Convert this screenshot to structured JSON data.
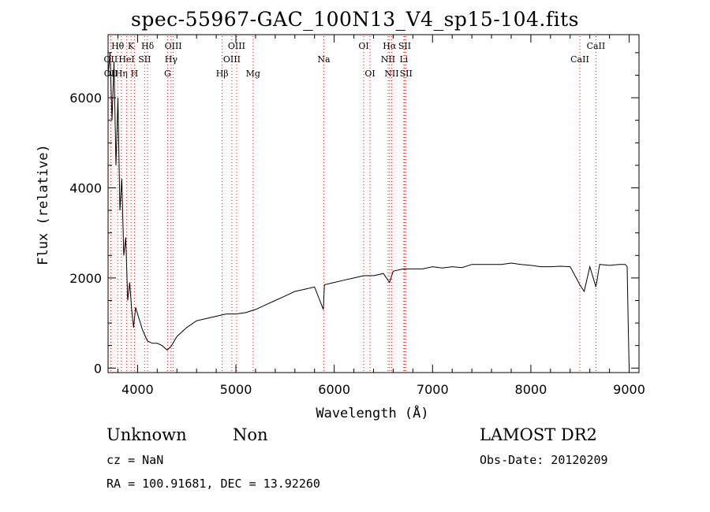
{
  "chart_data": {
    "type": "line",
    "title": "spec-55967-GAC_100N13_V4_sp15-104.fits",
    "xlabel": "Wavelength (Å)",
    "ylabel": "Flux (relative)",
    "xlim": [
      3700,
      9100
    ],
    "ylim": [
      -100,
      7400
    ],
    "x_ticks": [
      4000,
      5000,
      6000,
      7000,
      8000,
      9000
    ],
    "x_tick_labels": [
      "4000",
      "5000",
      "6000",
      "7000",
      "8000",
      "9000"
    ],
    "y_ticks": [
      0,
      2000,
      4000,
      6000
    ],
    "y_tick_labels": [
      "0",
      "2000",
      "4000",
      "6000"
    ],
    "grid": false,
    "series": [
      {
        "x": [
          3700,
          3720,
          3740,
          3760,
          3780,
          3800,
          3820,
          3840,
          3860,
          3880,
          3900,
          3920,
          3940,
          3960,
          3980,
          4000,
          4050,
          4100,
          4150,
          4200,
          4250,
          4300,
          4340,
          4400,
          4500,
          4600,
          4700,
          4800,
          4900,
          5000,
          5100,
          5200,
          5300,
          5400,
          5500,
          5600,
          5700,
          5800,
          5890,
          5900,
          6000,
          6100,
          6200,
          6300,
          6400,
          6500,
          6563,
          6600,
          6700,
          6800,
          6900,
          7000,
          7100,
          7200,
          7300,
          7400,
          7500,
          7600,
          7700,
          7800,
          7900,
          8000,
          8100,
          8200,
          8300,
          8400,
          8498,
          8542,
          8600,
          8662,
          8700,
          8800,
          8900,
          8960,
          8980,
          8990,
          9000
        ],
        "y": [
          6500,
          7000,
          5500,
          6800,
          4500,
          6000,
          3500,
          4200,
          2500,
          2900,
          1500,
          1900,
          1300,
          900,
          1350,
          1200,
          850,
          600,
          550,
          550,
          500,
          400,
          480,
          700,
          900,
          1050,
          1100,
          1150,
          1200,
          1200,
          1230,
          1300,
          1400,
          1500,
          1600,
          1700,
          1750,
          1800,
          1300,
          1850,
          1900,
          1950,
          2000,
          2050,
          2050,
          2100,
          1900,
          2150,
          2200,
          2200,
          2200,
          2250,
          2220,
          2250,
          2230,
          2300,
          2300,
          2300,
          2300,
          2330,
          2300,
          2280,
          2250,
          2250,
          2260,
          2250,
          1850,
          1700,
          2250,
          1800,
          2300,
          2280,
          2300,
          2300,
          2250,
          1000,
          0
        ],
        "points": 77
      }
    ],
    "lines": [
      {
        "name": "OII",
        "x": 3727,
        "row": 2
      },
      {
        "name": "OII",
        "x": 3729,
        "row": 3
      },
      {
        "name": "Hθ",
        "x": 3798,
        "row": 1
      },
      {
        "name": "Hη",
        "x": 3835,
        "row": 3
      },
      {
        "name": "K",
        "x": 3934,
        "row": 1
      },
      {
        "name": "HeI",
        "x": 3889,
        "row": 2
      },
      {
        "name": "SII",
        "x": 4072,
        "row": 2
      },
      {
        "name": "H",
        "x": 3968,
        "row": 3
      },
      {
        "name": "Hδ",
        "x": 4102,
        "row": 1
      },
      {
        "name": "OIII",
        "x": 4363,
        "row": 1
      },
      {
        "name": "Hγ",
        "x": 4341,
        "row": 2
      },
      {
        "name": "G",
        "x": 4305,
        "row": 3
      },
      {
        "name": "Hβ",
        "x": 4861,
        "row": 3
      },
      {
        "name": "OIII",
        "x": 4959,
        "row": 2
      },
      {
        "name": "OIII",
        "x": 5007,
        "row": 1
      },
      {
        "name": "Mg",
        "x": 5175,
        "row": 3
      },
      {
        "name": "Na",
        "x": 5894,
        "row": 2
      },
      {
        "name": "OI",
        "x": 6300,
        "row": 1
      },
      {
        "name": "OI",
        "x": 6364,
        "row": 3
      },
      {
        "name": "Hα",
        "x": 6563,
        "row": 1
      },
      {
        "name": "NII",
        "x": 6548,
        "row": 2
      },
      {
        "name": "NII",
        "x": 6584,
        "row": 3
      },
      {
        "name": "SII",
        "x": 6717,
        "row": 1
      },
      {
        "name": "Li",
        "x": 6708,
        "row": 2
      },
      {
        "name": "SII",
        "x": 6731,
        "row": 3
      },
      {
        "name": "CaII",
        "x": 8498,
        "row": 2
      },
      {
        "name": "CaII",
        "x": 8662,
        "row": 1
      }
    ]
  },
  "footer": {
    "class_label": "Unknown",
    "subclass_label": "Non",
    "survey_label": "LAMOST DR2",
    "redshift_label": "cz = NaN",
    "obs_date_label": "Obs-Date: 20120209",
    "coords_label": "RA = 100.91681, DEC =  13.92260"
  },
  "colors": {
    "spectrum": "#000000",
    "line_marker": "#cc2222",
    "axis": "#000000"
  }
}
